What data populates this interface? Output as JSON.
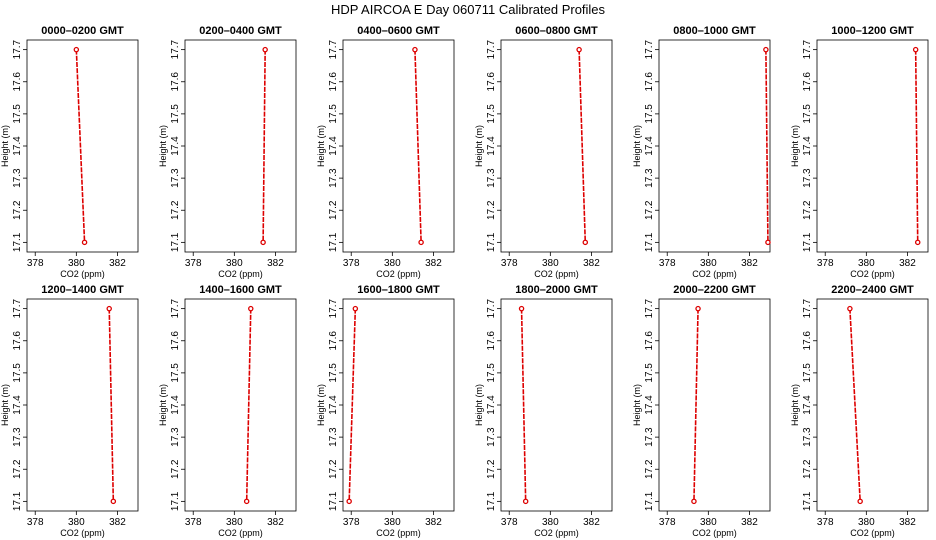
{
  "chart_data": {
    "type": "line",
    "title": "HDP  AIRCOA E  Day 060711  Calibrated Profiles",
    "xlabel": "CO2 (ppm)",
    "ylabel": "Height (m)",
    "xlim": [
      377.6,
      383.0
    ],
    "ylim": [
      17.07,
      17.73
    ],
    "xticks": [
      378,
      380,
      382
    ],
    "yticks": [
      17.1,
      17.2,
      17.3,
      17.4,
      17.5,
      17.6,
      17.7
    ],
    "grid": false,
    "line_color": "#dd0000",
    "panels": [
      {
        "title": "0000–0200 GMT",
        "points": [
          {
            "x": 380.0,
            "y": 17.7
          },
          {
            "x": 380.4,
            "y": 17.1
          }
        ]
      },
      {
        "title": "0200–0400 GMT",
        "points": [
          {
            "x": 381.5,
            "y": 17.7
          },
          {
            "x": 381.4,
            "y": 17.1
          }
        ]
      },
      {
        "title": "0400–0600 GMT",
        "points": [
          {
            "x": 381.1,
            "y": 17.7
          },
          {
            "x": 381.4,
            "y": 17.1
          }
        ]
      },
      {
        "title": "0600–0800 GMT",
        "points": [
          {
            "x": 381.4,
            "y": 17.7
          },
          {
            "x": 381.7,
            "y": 17.1
          }
        ]
      },
      {
        "title": "0800–1000 GMT",
        "points": [
          {
            "x": 382.8,
            "y": 17.7
          },
          {
            "x": 382.9,
            "y": 17.1
          }
        ]
      },
      {
        "title": "1000–1200 GMT",
        "points": [
          {
            "x": 382.4,
            "y": 17.7
          },
          {
            "x": 382.5,
            "y": 17.1
          }
        ]
      },
      {
        "title": "1200–1400 GMT",
        "points": [
          {
            "x": 381.6,
            "y": 17.7
          },
          {
            "x": 381.8,
            "y": 17.1
          }
        ]
      },
      {
        "title": "1400–1600 GMT",
        "points": [
          {
            "x": 380.8,
            "y": 17.7
          },
          {
            "x": 380.6,
            "y": 17.1
          }
        ]
      },
      {
        "title": "1600–1800 GMT",
        "points": [
          {
            "x": 378.2,
            "y": 17.7
          },
          {
            "x": 377.9,
            "y": 17.1
          }
        ]
      },
      {
        "title": "1800–2000 GMT",
        "points": [
          {
            "x": 378.6,
            "y": 17.7
          },
          {
            "x": 378.8,
            "y": 17.1
          }
        ]
      },
      {
        "title": "2000–2200 GMT",
        "points": [
          {
            "x": 379.5,
            "y": 17.7
          },
          {
            "x": 379.3,
            "y": 17.1
          }
        ]
      },
      {
        "title": "2200–2400 GMT",
        "points": [
          {
            "x": 379.2,
            "y": 17.7
          },
          {
            "x": 379.7,
            "y": 17.1
          }
        ]
      }
    ]
  }
}
